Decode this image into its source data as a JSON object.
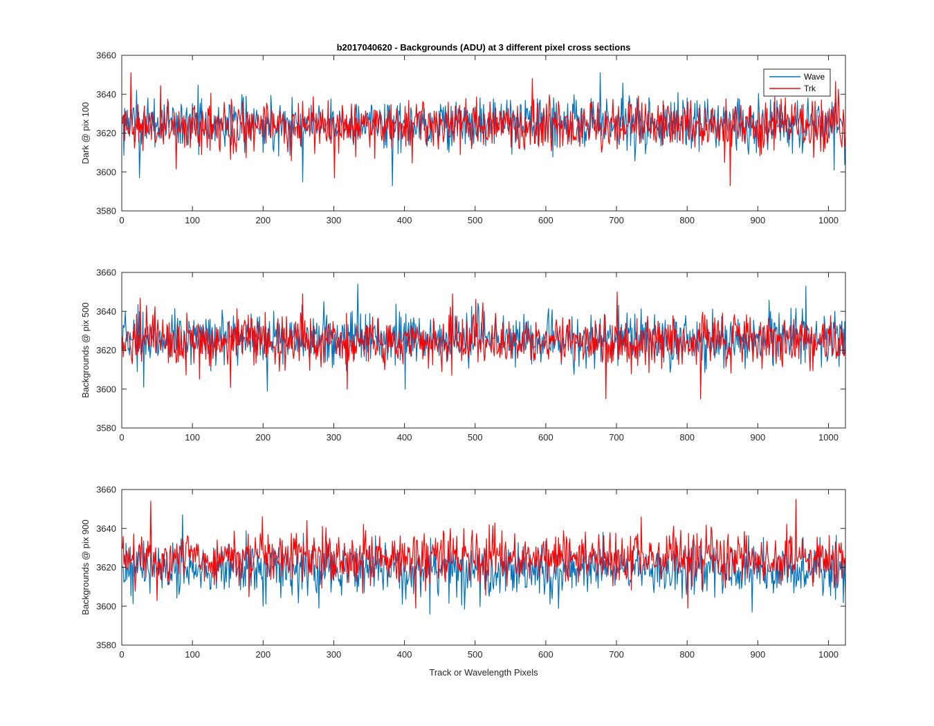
{
  "figure": {
    "title": "b2017040620 - Backgrounds (ADU) at 3 different pixel cross sections",
    "xlabel": "Track or Wavelength Pixels"
  },
  "legend": {
    "placement": "top-right",
    "entries": [
      "Wave",
      "Trk"
    ]
  },
  "colors": {
    "Wave": "#0072BD",
    "Trk": "#FF0000",
    "axes": "#262626"
  },
  "chart_data": [
    {
      "type": "line",
      "ylabel": "Dark @ pix 100",
      "xlim": [
        0,
        1024
      ],
      "ylim": [
        3580,
        3660
      ],
      "xticks": [
        0,
        100,
        200,
        300,
        400,
        500,
        600,
        700,
        800,
        900,
        1000
      ],
      "yticks": [
        3580,
        3600,
        3620,
        3640,
        3660
      ],
      "grid": false,
      "series": [
        {
          "name": "Wave",
          "color": "#0072BD",
          "n": 1024,
          "mean": 3625,
          "range": [
            3593,
            3651
          ],
          "extremes": [
            [
              24,
              3597
            ],
            [
              255,
              3595
            ],
            [
              382,
              3593
            ],
            [
              676,
              3651
            ],
            [
              1007,
              3601
            ]
          ]
        },
        {
          "name": "Trk",
          "color": "#FF0000",
          "n": 1024,
          "mean": 3624,
          "range": [
            3593,
            3651
          ],
          "extremes": [
            [
              12,
              3651
            ],
            [
              300,
              3597
            ],
            [
              580,
              3648
            ],
            [
              860,
              3593
            ],
            [
              1024,
              3608
            ]
          ]
        }
      ]
    },
    {
      "type": "line",
      "ylabel": "Backgrounds @ pix 500",
      "xlim": [
        0,
        1024
      ],
      "ylim": [
        3580,
        3660
      ],
      "xticks": [
        0,
        100,
        200,
        300,
        400,
        500,
        600,
        700,
        800,
        900,
        1000
      ],
      "yticks": [
        3580,
        3600,
        3620,
        3640,
        3660
      ],
      "grid": false,
      "series": [
        {
          "name": "Wave",
          "color": "#0072BD",
          "n": 1024,
          "mean": 3626,
          "range": [
            3599,
            3654
          ],
          "extremes": [
            [
              30,
              3601
            ],
            [
              205,
              3599
            ],
            [
              333,
              3654
            ],
            [
              400,
              3600
            ],
            [
              967,
              3653
            ]
          ]
        },
        {
          "name": "Trk",
          "color": "#FF0000",
          "n": 1024,
          "mean": 3625,
          "range": [
            3595,
            3650
          ],
          "extremes": [
            [
              34,
              3643
            ],
            [
              255,
              3649
            ],
            [
              684,
              3595
            ],
            [
              700,
              3650
            ],
            [
              818,
              3595
            ]
          ]
        }
      ]
    },
    {
      "type": "line",
      "ylabel": "Backgrounds @ pix 900",
      "xlim": [
        0,
        1024
      ],
      "ylim": [
        3580,
        3660
      ],
      "xticks": [
        0,
        100,
        200,
        300,
        400,
        500,
        600,
        700,
        800,
        900,
        1000
      ],
      "yticks": [
        3580,
        3600,
        3620,
        3640,
        3660
      ],
      "grid": false,
      "series": [
        {
          "name": "Wave",
          "color": "#0072BD",
          "n": 1024,
          "mean": 3619,
          "range": [
            3596,
            3647
          ],
          "extremes": [
            [
              85,
              3647
            ],
            [
              278,
              3599
            ],
            [
              435,
              3596
            ],
            [
              680,
              3638
            ],
            [
              1000,
              3610
            ]
          ]
        },
        {
          "name": "Trk",
          "color": "#FF0000",
          "n": 1024,
          "mean": 3625,
          "range": [
            3599,
            3655
          ],
          "extremes": [
            [
              40,
              3654
            ],
            [
              198,
              3646
            ],
            [
              415,
              3599
            ],
            [
              800,
              3599
            ],
            [
              953,
              3655
            ]
          ]
        }
      ]
    }
  ]
}
